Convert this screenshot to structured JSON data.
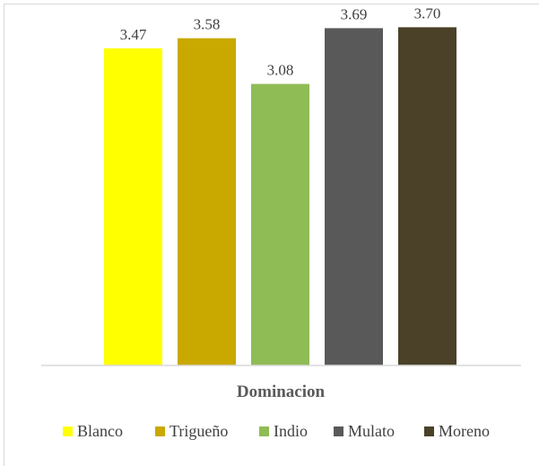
{
  "chart_data": {
    "type": "bar",
    "xlabel": "Dominacion",
    "ylabel": "",
    "ylim": [
      0,
      3.9
    ],
    "grid": false,
    "legend_position": "bottom",
    "categories": [
      "Dominacion"
    ],
    "series": [
      {
        "name": "Blanco",
        "values": [
          3.47
        ],
        "label": "3.47",
        "color": "#ffff00"
      },
      {
        "name": "Trigueño",
        "values": [
          3.58
        ],
        "label": "3.58",
        "color": "#c9a800"
      },
      {
        "name": "Indio",
        "values": [
          3.08
        ],
        "label": "3.08",
        "color": "#8fbc55"
      },
      {
        "name": "Mulato",
        "values": [
          3.69
        ],
        "label": "3.69",
        "color": "#595959"
      },
      {
        "name": "Moreno",
        "values": [
          3.7
        ],
        "label": "3.70",
        "color": "#4a4128"
      }
    ]
  }
}
